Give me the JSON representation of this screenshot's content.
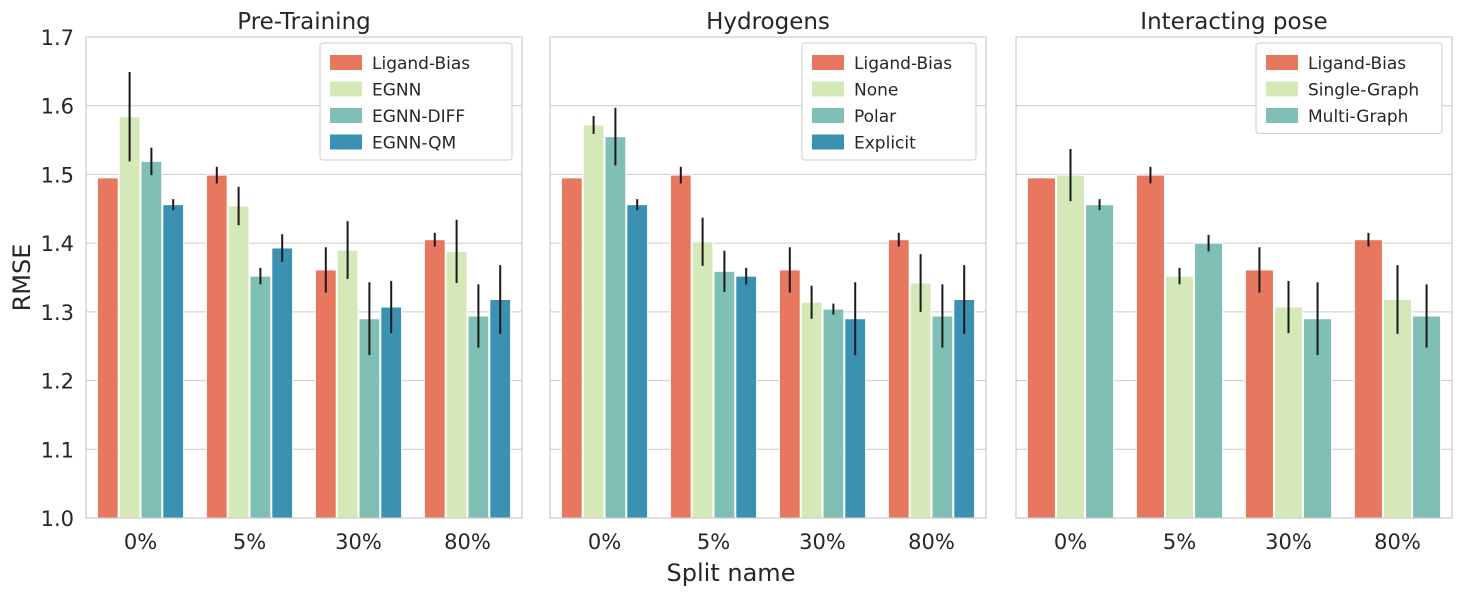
{
  "chart_data": {
    "type": "bar",
    "ylabel": "RMSE",
    "xlabel": "Split name",
    "ylim": [
      1.0,
      1.7
    ],
    "yticks": [
      "1.0",
      "1.1",
      "1.2",
      "1.3",
      "1.4",
      "1.5",
      "1.6",
      "1.7"
    ],
    "grid": true,
    "legend_position": "top-right",
    "categories": [
      "0%",
      "5%",
      "30%",
      "80%"
    ],
    "colors": {
      "Ligand-Bias": "#e8775f",
      "EGNN": "#d4e8b8",
      "EGNN-DIFF": "#80bfb5",
      "EGNN-QM": "#3a91b1",
      "None": "#d4e8b8",
      "Polar": "#80bfb5",
      "Explicit": "#3a91b1",
      "Single-Graph": "#d4e8b8",
      "Multi-Graph": "#80bfb5"
    },
    "panels": [
      {
        "title": "Pre-Training",
        "series": [
          {
            "name": "Ligand-Bias",
            "values": [
              1.495,
              1.499,
              1.361,
              1.405
            ],
            "errors": [
              0,
              0.012,
              0.033,
              0.01
            ]
          },
          {
            "name": "EGNN",
            "values": [
              1.584,
              1.454,
              1.39,
              1.388
            ],
            "errors": [
              0.065,
              0.028,
              0.042,
              0.046
            ]
          },
          {
            "name": "EGNN-DIFF",
            "values": [
              1.519,
              1.352,
              1.29,
              1.294
            ],
            "errors": [
              0.02,
              0.012,
              0.053,
              0.046
            ]
          },
          {
            "name": "EGNN-QM",
            "values": [
              1.456,
              1.393,
              1.307,
              1.318
            ],
            "errors": [
              0.008,
              0.02,
              0.038,
              0.05
            ]
          }
        ]
      },
      {
        "title": "Hydrogens",
        "series": [
          {
            "name": "Ligand-Bias",
            "values": [
              1.495,
              1.499,
              1.361,
              1.405
            ],
            "errors": [
              0,
              0.012,
              0.033,
              0.01
            ]
          },
          {
            "name": "None",
            "values": [
              1.572,
              1.402,
              1.314,
              1.342
            ],
            "errors": [
              0.013,
              0.035,
              0.024,
              0.042
            ]
          },
          {
            "name": "Polar",
            "values": [
              1.555,
              1.359,
              1.304,
              1.294
            ],
            "errors": [
              0.042,
              0.03,
              0.008,
              0.046
            ]
          },
          {
            "name": "Explicit",
            "values": [
              1.456,
              1.352,
              1.29,
              1.318
            ],
            "errors": [
              0.008,
              0.012,
              0.053,
              0.05
            ]
          }
        ]
      },
      {
        "title": "Interacting pose",
        "series": [
          {
            "name": "Ligand-Bias",
            "values": [
              1.495,
              1.499,
              1.361,
              1.405
            ],
            "errors": [
              0,
              0.012,
              0.033,
              0.01
            ]
          },
          {
            "name": "Single-Graph",
            "values": [
              1.499,
              1.352,
              1.307,
              1.318
            ],
            "errors": [
              0.038,
              0.012,
              0.038,
              0.05
            ]
          },
          {
            "name": "Multi-Graph",
            "values": [
              1.456,
              1.4,
              1.29,
              1.294
            ],
            "errors": [
              0.008,
              0.012,
              0.053,
              0.046
            ]
          }
        ]
      }
    ]
  }
}
